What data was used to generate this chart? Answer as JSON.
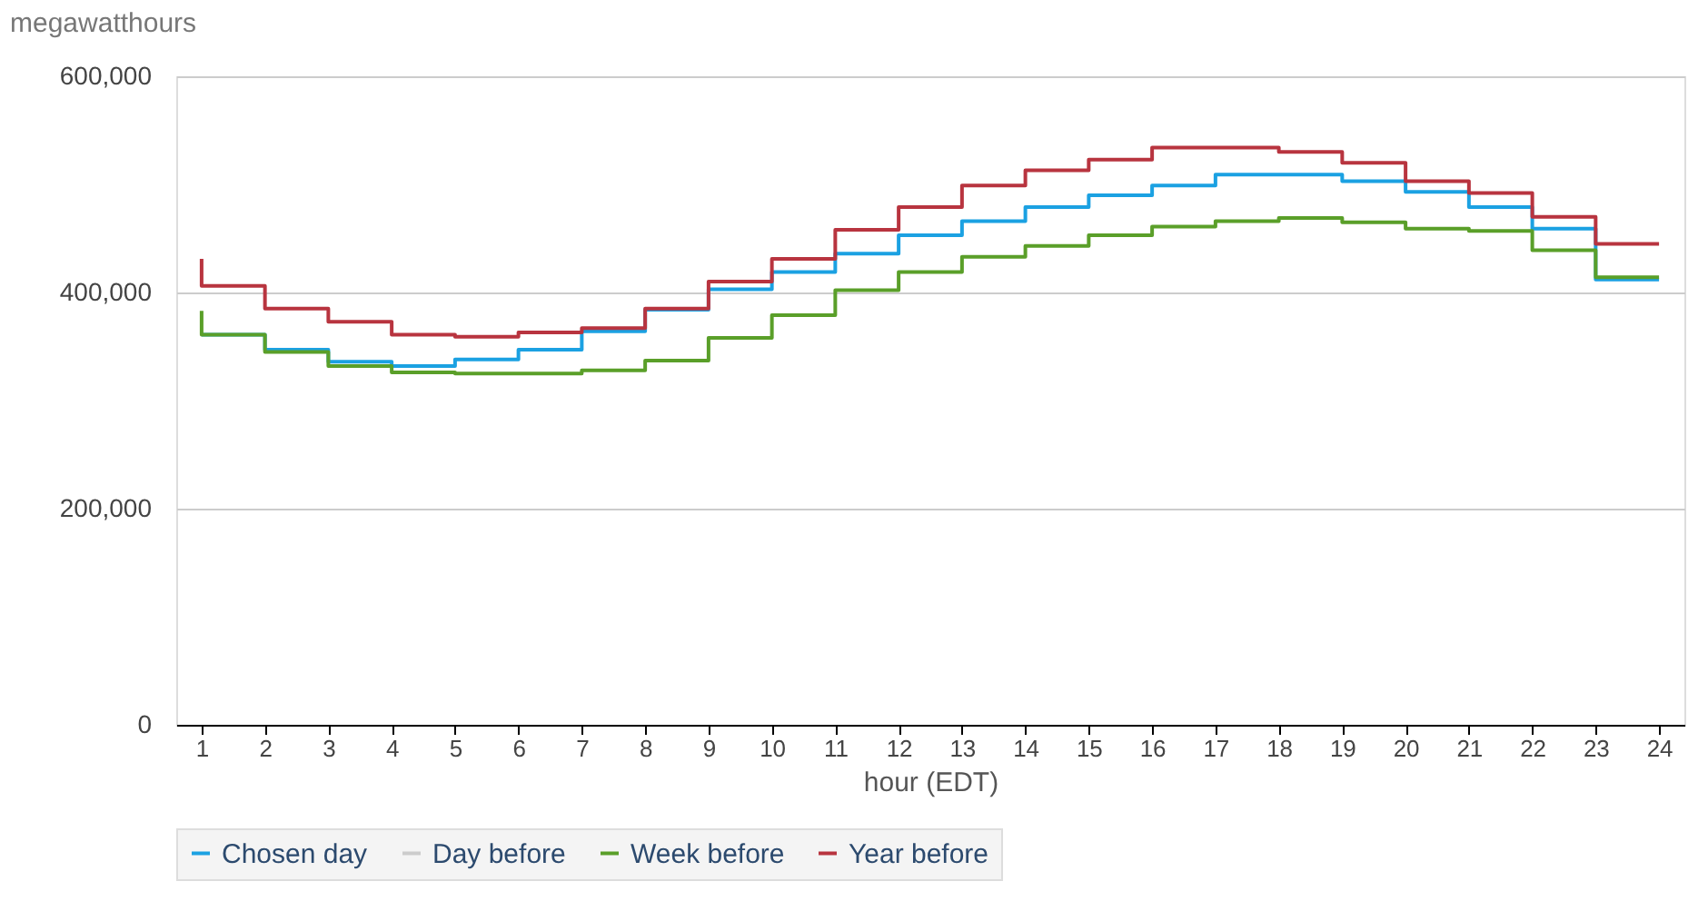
{
  "chart_data": {
    "type": "step",
    "ylabel": "megawatthours",
    "xlabel": "hour (EDT)",
    "x": [
      1,
      2,
      3,
      4,
      5,
      6,
      7,
      8,
      9,
      10,
      11,
      12,
      13,
      14,
      15,
      16,
      17,
      18,
      19,
      20,
      21,
      22,
      23,
      24
    ],
    "series": [
      {
        "name": "Chosen day",
        "color": "#1ba1e2",
        "values": [
          361000,
          361000,
          347000,
          336000,
          332000,
          338000,
          347000,
          364000,
          384000,
          403000,
          419000,
          436000,
          453000,
          466000,
          479000,
          490000,
          499000,
          509000,
          509000,
          503000,
          493000,
          479000,
          459000,
          412000
        ]
      },
      {
        "name": "Day before",
        "color": "#cccccc",
        "values": [
          null,
          null,
          null,
          null,
          null,
          null,
          null,
          null,
          null,
          null,
          null,
          null,
          null,
          null,
          null,
          null,
          null,
          null,
          null,
          null,
          null,
          null,
          null,
          null
        ]
      },
      {
        "name": "Week before",
        "color": "#5a9f29",
        "values": [
          383000,
          361000,
          345000,
          332000,
          326000,
          325000,
          325000,
          328000,
          337000,
          358000,
          379000,
          402000,
          419000,
          433000,
          443000,
          453000,
          461000,
          466000,
          469000,
          465000,
          459000,
          457000,
          439000,
          414000
        ]
      },
      {
        "name": "Year before",
        "color": "#b8343f",
        "values": [
          431000,
          406000,
          385000,
          373000,
          361000,
          359000,
          363000,
          367000,
          385000,
          410000,
          431000,
          458000,
          479000,
          499000,
          513000,
          523000,
          534000,
          534000,
          530000,
          520000,
          503000,
          492000,
          470000,
          445000
        ]
      }
    ],
    "xlim": [
      0.6,
      24.4
    ],
    "xticks": [
      1,
      2,
      3,
      4,
      5,
      6,
      7,
      8,
      9,
      10,
      11,
      12,
      13,
      14,
      15,
      16,
      17,
      18,
      19,
      20,
      21,
      22,
      23,
      24
    ],
    "ylim": [
      0,
      600000
    ],
    "yticks": [
      0,
      {
        "value": 200000,
        "label": "200,000"
      },
      {
        "value": 400000,
        "label": "400,000"
      },
      {
        "value": 600000,
        "label": "600,000"
      }
    ],
    "grid": "y",
    "legend": "bottom",
    "line_style": "solid"
  }
}
